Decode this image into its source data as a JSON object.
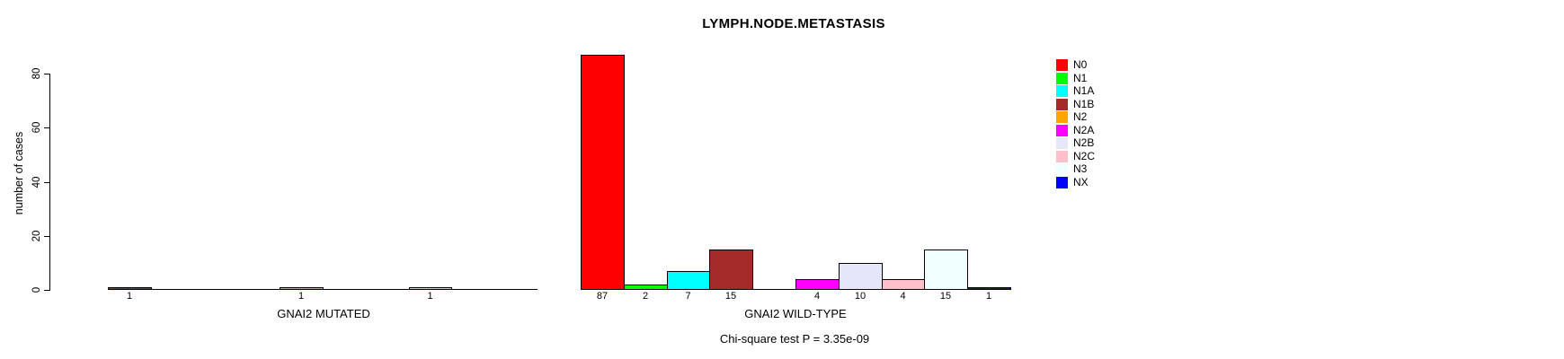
{
  "title": "LYMPH.NODE.METASTASIS",
  "chart_data": {
    "type": "bar",
    "title": "LYMPH.NODE.METASTASIS",
    "xlabel": "",
    "ylabel": "number of cases",
    "yticks": [
      0,
      20,
      40,
      60,
      80
    ],
    "ylim": [
      0,
      87
    ],
    "grid": false,
    "categories": [
      "N0",
      "N1",
      "N1A",
      "N1B",
      "N2",
      "N2A",
      "N2B",
      "N2C",
      "N3",
      "NX"
    ],
    "colors": [
      "#FF0000",
      "#00FF00",
      "#00FFFF",
      "#A52A2A",
      "#FFA500",
      "#FF00FF",
      "#E6E6FA",
      "#FFC0CB",
      "#F0FFFF",
      "#0000FF"
    ],
    "axis_color": "#000000",
    "groups": [
      {
        "name": "GNAI2 MUTATED",
        "values": [
          1,
          0,
          0,
          0,
          1,
          0,
          0,
          1,
          0,
          0
        ]
      },
      {
        "name": "GNAI2 WILD-TYPE",
        "values": [
          87,
          2,
          7,
          15,
          0,
          4,
          10,
          4,
          15,
          1
        ]
      }
    ],
    "legend": {
      "position": "right",
      "entries": [
        "N0",
        "N1",
        "N1A",
        "N1B",
        "N2",
        "N2A",
        "N2B",
        "N2C",
        "N3",
        "NX"
      ]
    },
    "annotation": "Chi-square test P = 3.35e-09"
  }
}
